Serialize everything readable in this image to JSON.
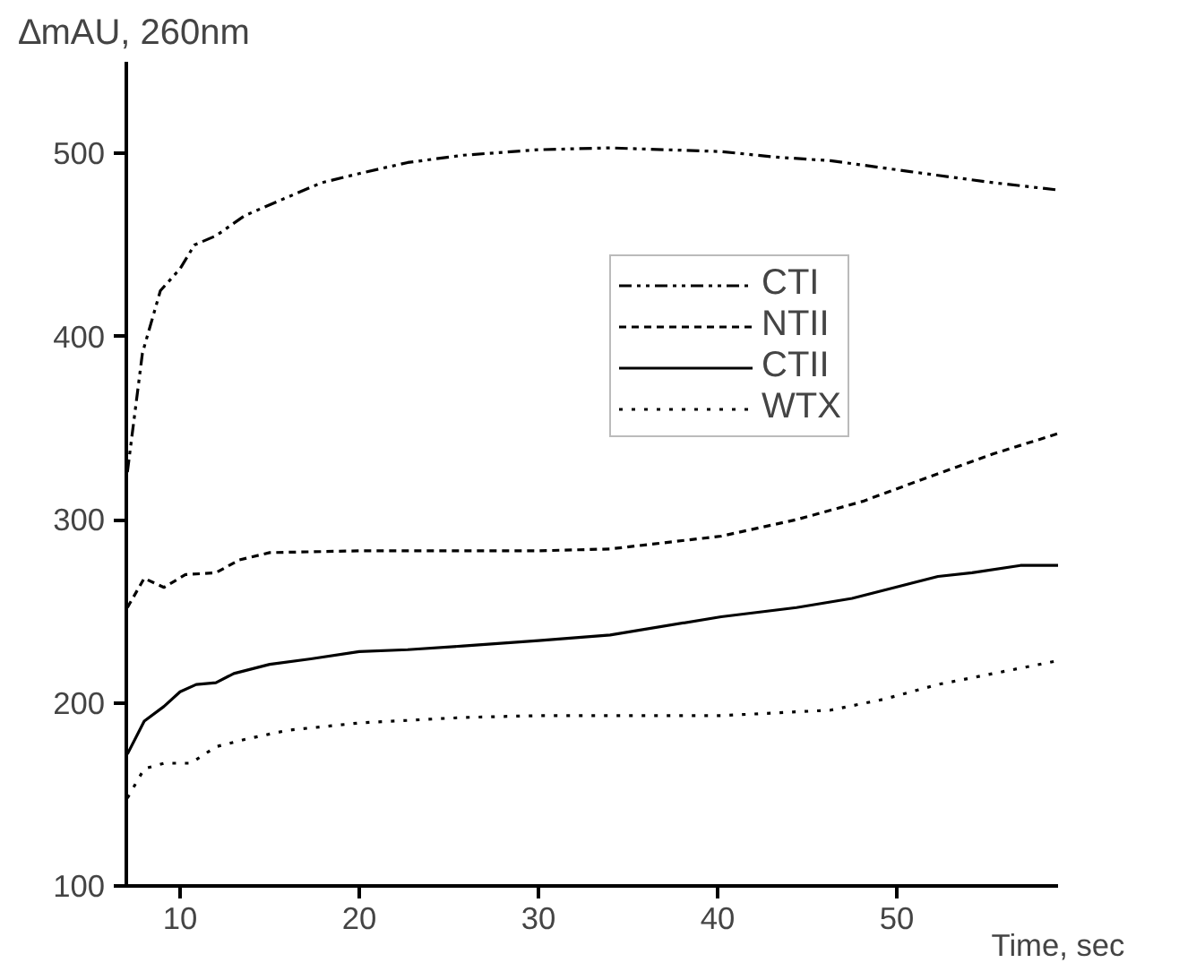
{
  "chart_data": {
    "type": "line",
    "ylabel": "∆mAU, 260nm",
    "xlabel": "Time, sec",
    "xlim": [
      7,
      59
    ],
    "ylim": [
      100,
      550
    ],
    "xticks": [
      10,
      20,
      30,
      40,
      50
    ],
    "yticks": [
      100,
      200,
      300,
      400,
      500
    ],
    "grid": false,
    "legend": "right",
    "marker": "none",
    "series": [
      {
        "name": "CTI",
        "color": "#000000",
        "line_style": "dashdotdot",
        "x": [
          7.06,
          7.9,
          8.9,
          10,
          10.8,
          12,
          13.6,
          15.5,
          17.9,
          20,
          22.7,
          25.8,
          30,
          34,
          37.1,
          40.2,
          43.2,
          46.3,
          49.3,
          52.3,
          55.4,
          59
        ],
        "values": [
          326,
          391,
          425,
          437,
          450,
          455,
          466,
          474,
          484,
          489,
          495,
          499,
          502,
          503,
          502,
          501,
          498,
          496,
          492,
          488,
          484,
          480
        ]
      },
      {
        "name": "NTII",
        "color": "#000000",
        "line_style": "dashed",
        "x": [
          7.06,
          8,
          9.1,
          10.3,
          12,
          13.3,
          15,
          20,
          25.8,
          30,
          34,
          40.2,
          44.4,
          48.1,
          51.7,
          55.4,
          59
        ],
        "values": [
          252,
          268,
          263,
          270,
          271,
          278,
          282,
          283,
          283,
          283,
          284,
          291,
          300,
          310,
          323,
          336,
          347
        ]
      },
      {
        "name": "CTII",
        "color": "#000000",
        "line_style": "solid",
        "x": [
          7.06,
          8,
          9.1,
          10,
          10.9,
          12,
          13,
          15,
          17.3,
          20,
          22.7,
          25.8,
          30,
          34,
          40.2,
          44.4,
          47.5,
          49.9,
          52.3,
          54.2,
          56.9,
          59
        ],
        "values": [
          172,
          190,
          198,
          206,
          210,
          211,
          216,
          221,
          224,
          228,
          229,
          231,
          234,
          237,
          247,
          252,
          257,
          263,
          269,
          271,
          275,
          275
        ]
      },
      {
        "name": "WTX",
        "color": "#000000",
        "line_style": "dotted",
        "x": [
          7.06,
          8,
          9.1,
          10.6,
          12,
          13.6,
          16,
          20,
          25.8,
          30,
          34,
          40.2,
          46.3,
          49.3,
          52.3,
          55.4,
          59
        ],
        "values": [
          148,
          164,
          167,
          167,
          176,
          180,
          185,
          189,
          192,
          193,
          193,
          193,
          196,
          202,
          210,
          216,
          223
        ]
      }
    ]
  }
}
